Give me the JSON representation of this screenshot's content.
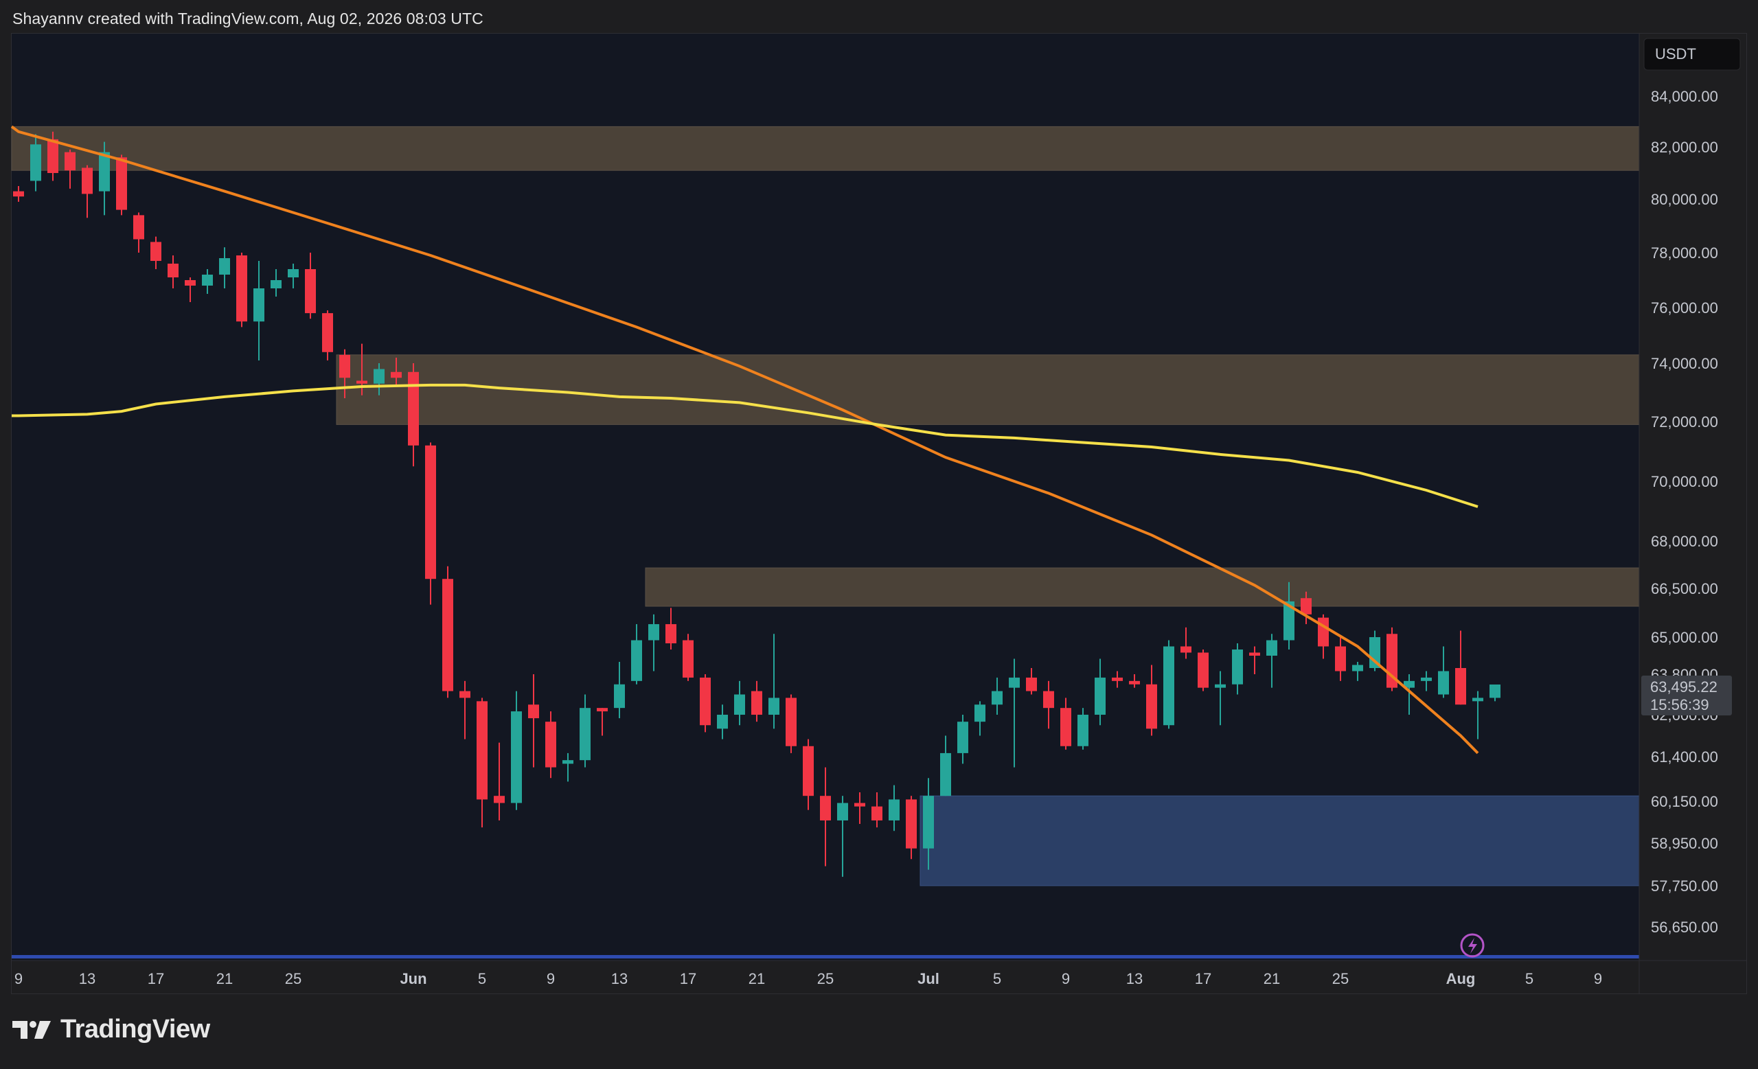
{
  "header": {
    "attribution": "Shayannv created with TradingView.com, Aug 02, 2026 08:03 UTC"
  },
  "brand": {
    "name": "TradingView",
    "icon": "tradingview-logo-icon"
  },
  "colors": {
    "background": "#131722",
    "up": "#26a69a",
    "down": "#f23645",
    "ma_fast": "#f5e04a",
    "ma_slow": "#f0821e",
    "supply_zone": "#4b4238",
    "demand_zone": "#2b3f66"
  },
  "chart_data": {
    "type": "candlestick",
    "currency": "USDT",
    "price_label": {
      "value": "63,495.22",
      "countdown": "15:56:39"
    },
    "y_ticks": [
      "84,000.00",
      "82,000.00",
      "80,000.00",
      "78,000.00",
      "76,000.00",
      "74,000.00",
      "72,000.00",
      "70,000.00",
      "68,000.00",
      "66,500.00",
      "65,000.00",
      "63,800.00",
      "62,600.00",
      "61,400.00",
      "60,150.00",
      "58,950.00",
      "57,750.00",
      "56,650.00"
    ],
    "x_ticks": [
      {
        "label": "9",
        "idx": 0
      },
      {
        "label": "13",
        "idx": 4
      },
      {
        "label": "17",
        "idx": 8
      },
      {
        "label": "21",
        "idx": 12
      },
      {
        "label": "25",
        "idx": 16
      },
      {
        "label": "Jun",
        "idx": 23
      },
      {
        "label": "5",
        "idx": 27
      },
      {
        "label": "9",
        "idx": 31
      },
      {
        "label": "13",
        "idx": 35
      },
      {
        "label": "17",
        "idx": 39
      },
      {
        "label": "21",
        "idx": 43
      },
      {
        "label": "25",
        "idx": 47
      },
      {
        "label": "Jul",
        "idx": 53
      },
      {
        "label": "5",
        "idx": 57
      },
      {
        "label": "9",
        "idx": 61
      },
      {
        "label": "13",
        "idx": 65
      },
      {
        "label": "17",
        "idx": 69
      },
      {
        "label": "21",
        "idx": 73
      },
      {
        "label": "25",
        "idx": 77
      },
      {
        "label": "Aug",
        "idx": 84
      },
      {
        "label": "5",
        "idx": 88
      },
      {
        "label": "9",
        "idx": 92
      }
    ],
    "zones": [
      {
        "kind": "supply",
        "from_idx": 0,
        "low": 81100,
        "high": 82800
      },
      {
        "kind": "supply",
        "from_idx": 19,
        "low": 71900,
        "high": 74300
      },
      {
        "kind": "supply",
        "from_idx": 37,
        "low": 65950,
        "high": 67150
      },
      {
        "kind": "demand",
        "from_idx": 53,
        "low": 57750,
        "high": 60300
      }
    ],
    "candles": [
      [
        80300,
        80500,
        79900,
        80100
      ],
      [
        80700,
        82500,
        80300,
        82100
      ],
      [
        82300,
        82600,
        80700,
        81000
      ],
      [
        81800,
        81900,
        80400,
        81100
      ],
      [
        81200,
        81300,
        79300,
        80200
      ],
      [
        80300,
        82200,
        79400,
        81800
      ],
      [
        81600,
        81700,
        79400,
        79600
      ],
      [
        79400,
        79500,
        78000,
        78500
      ],
      [
        78400,
        78600,
        77400,
        77700
      ],
      [
        77600,
        77900,
        76700,
        77100
      ],
      [
        77000,
        77100,
        76200,
        76800
      ],
      [
        76800,
        77400,
        76500,
        77200
      ],
      [
        77200,
        78200,
        76700,
        77800
      ],
      [
        77900,
        78000,
        75300,
        75500
      ],
      [
        75500,
        77700,
        74100,
        76700
      ],
      [
        76700,
        77400,
        76400,
        77000
      ],
      [
        77100,
        77600,
        76700,
        77400
      ],
      [
        77400,
        78000,
        75600,
        75800
      ],
      [
        75800,
        75900,
        74100,
        74400
      ],
      [
        74300,
        74500,
        72800,
        73500
      ],
      [
        73400,
        74700,
        72900,
        73300
      ],
      [
        73300,
        74000,
        72900,
        73800
      ],
      [
        73700,
        74200,
        73200,
        73500
      ],
      [
        73700,
        74000,
        70500,
        71200
      ],
      [
        71200,
        71300,
        66000,
        66800
      ],
      [
        66800,
        67200,
        63100,
        63300
      ],
      [
        63300,
        63600,
        61900,
        63100
      ],
      [
        63000,
        63100,
        59400,
        60200
      ],
      [
        60300,
        61800,
        59600,
        60100
      ],
      [
        60100,
        63300,
        59900,
        62700
      ],
      [
        62900,
        63800,
        61100,
        62500
      ],
      [
        62400,
        62700,
        60800,
        61100
      ],
      [
        61200,
        61500,
        60700,
        61300
      ],
      [
        61300,
        63200,
        61100,
        62800
      ],
      [
        62800,
        62800,
        62000,
        62700
      ],
      [
        62800,
        64200,
        62500,
        63500
      ],
      [
        63600,
        65400,
        63500,
        64900
      ],
      [
        64900,
        65700,
        63900,
        65400
      ],
      [
        65400,
        65900,
        64600,
        64800
      ],
      [
        64900,
        65100,
        63600,
        63700
      ],
      [
        63700,
        63800,
        62100,
        62300
      ],
      [
        62200,
        62900,
        61900,
        62600
      ],
      [
        62600,
        63600,
        62300,
        63200
      ],
      [
        63300,
        63600,
        62400,
        62600
      ],
      [
        62600,
        65100,
        62200,
        63100
      ],
      [
        63100,
        63200,
        61500,
        61700
      ],
      [
        61700,
        61900,
        59900,
        60300
      ],
      [
        60300,
        61100,
        58300,
        59600
      ],
      [
        59600,
        60300,
        58000,
        60100
      ],
      [
        60100,
        60400,
        59500,
        60000
      ],
      [
        60000,
        60400,
        59400,
        59600
      ],
      [
        59600,
        60600,
        59300,
        60200
      ],
      [
        60200,
        60300,
        58500,
        58800
      ],
      [
        58800,
        60800,
        58200,
        60300
      ],
      [
        60300,
        62000,
        60300,
        61500
      ],
      [
        61500,
        62600,
        61200,
        62400
      ],
      [
        62400,
        63000,
        62000,
        62900
      ],
      [
        62900,
        63700,
        62600,
        63300
      ],
      [
        63400,
        64300,
        61100,
        63700
      ],
      [
        63700,
        64000,
        63200,
        63300
      ],
      [
        63300,
        63600,
        62200,
        62800
      ],
      [
        62800,
        63100,
        61600,
        61700
      ],
      [
        61700,
        62800,
        61600,
        62600
      ],
      [
        62600,
        64300,
        62300,
        63700
      ],
      [
        63700,
        63900,
        63400,
        63600
      ],
      [
        63600,
        63800,
        63400,
        63500
      ],
      [
        63500,
        64100,
        62000,
        62200
      ],
      [
        62300,
        64900,
        62200,
        64700
      ],
      [
        64700,
        65300,
        64300,
        64500
      ],
      [
        64500,
        64600,
        63300,
        63400
      ],
      [
        63400,
        63900,
        62300,
        63500
      ],
      [
        63500,
        64800,
        63200,
        64600
      ],
      [
        64500,
        64700,
        63800,
        64400
      ],
      [
        64400,
        65100,
        63400,
        64900
      ],
      [
        64900,
        66700,
        64600,
        66100
      ],
      [
        66200,
        66400,
        65400,
        65700
      ],
      [
        65600,
        65700,
        64300,
        64700
      ],
      [
        64700,
        65000,
        63600,
        63900
      ],
      [
        63900,
        64200,
        63600,
        64100
      ],
      [
        64000,
        65200,
        63900,
        65000
      ],
      [
        65100,
        65300,
        63300,
        63400
      ],
      [
        63400,
        63800,
        62600,
        63600
      ],
      [
        63600,
        63900,
        63300,
        63700
      ],
      [
        63200,
        64700,
        63100,
        63900
      ],
      [
        64000,
        65200,
        62900,
        62900
      ],
      [
        63000,
        63300,
        61900,
        63100
      ],
      [
        63100,
        63400,
        63000,
        63495
      ]
    ],
    "ma_slow": [
      [
        0,
        82600
      ],
      [
        6,
        81500
      ],
      [
        12,
        80300
      ],
      [
        18,
        79100
      ],
      [
        24,
        77900
      ],
      [
        30,
        76600
      ],
      [
        36,
        75300
      ],
      [
        42,
        73900
      ],
      [
        48,
        72400
      ],
      [
        54,
        70800
      ],
      [
        60,
        69600
      ],
      [
        66,
        68200
      ],
      [
        72,
        66600
      ],
      [
        78,
        64700
      ],
      [
        84,
        62000
      ],
      [
        85,
        61500
      ]
    ],
    "ma_fast": [
      [
        0,
        72200
      ],
      [
        4,
        72250
      ],
      [
        6,
        72350
      ],
      [
        8,
        72600
      ],
      [
        12,
        72850
      ],
      [
        16,
        73050
      ],
      [
        20,
        73200
      ],
      [
        24,
        73250
      ],
      [
        26,
        73250
      ],
      [
        28,
        73150
      ],
      [
        32,
        73000
      ],
      [
        35,
        72850
      ],
      [
        38,
        72800
      ],
      [
        42,
        72650
      ],
      [
        46,
        72300
      ],
      [
        50,
        71900
      ],
      [
        54,
        71550
      ],
      [
        58,
        71450
      ],
      [
        62,
        71300
      ],
      [
        66,
        71150
      ],
      [
        70,
        70900
      ],
      [
        74,
        70700
      ],
      [
        78,
        70300
      ],
      [
        82,
        69700
      ],
      [
        85,
        69150
      ]
    ]
  }
}
